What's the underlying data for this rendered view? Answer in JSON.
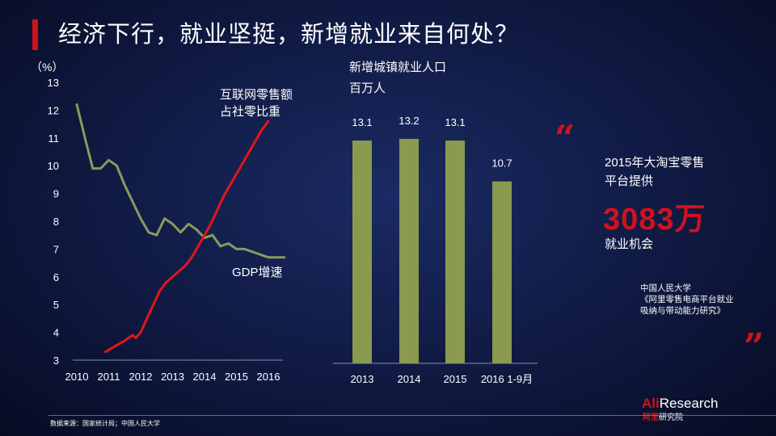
{
  "title": "经济下行，就业坚挺，新增就业来自何处？",
  "chart_data": [
    {
      "type": "line",
      "ylabel": "（%）",
      "ylim": [
        3,
        13
      ],
      "yticks": [
        "3",
        "4",
        "5",
        "6",
        "7",
        "8",
        "9",
        "10",
        "11",
        "12",
        "13"
      ],
      "xlim": [
        2010,
        2016.6
      ],
      "xticks": [
        "2010",
        "2011",
        "2012",
        "2013",
        "2014",
        "2015",
        "2016"
      ],
      "series": [
        {
          "name": "GDP增速",
          "color": "#8a9a5b",
          "x": [
            2010.0,
            2010.3,
            2010.5,
            2010.75,
            2011.0,
            2011.25,
            2011.5,
            2011.75,
            2012.0,
            2012.25,
            2012.5,
            2012.75,
            2013.0,
            2013.25,
            2013.5,
            2013.75,
            2014.0,
            2014.25,
            2014.5,
            2014.75,
            2015.0,
            2015.25,
            2015.5,
            2015.75,
            2016.0,
            2016.25,
            2016.5
          ],
          "y": [
            12.2,
            10.8,
            9.9,
            9.9,
            10.2,
            10.0,
            9.3,
            8.7,
            8.1,
            7.6,
            7.5,
            8.1,
            7.9,
            7.6,
            7.9,
            7.7,
            7.4,
            7.5,
            7.1,
            7.2,
            7.0,
            7.0,
            6.9,
            6.8,
            6.7,
            6.7,
            6.7
          ]
        },
        {
          "name": "互联网零售额\n占社零比重",
          "color": "#e0161c",
          "x": [
            2010.9,
            2011.2,
            2011.5,
            2011.75,
            2011.85,
            2012.0,
            2012.2,
            2012.4,
            2012.6,
            2012.8,
            2013.0,
            2013.2,
            2013.4,
            2013.6,
            2013.8,
            2014.0,
            2014.2,
            2014.4,
            2014.6,
            2014.8,
            2015.0,
            2015.2,
            2015.4,
            2015.6,
            2015.8,
            2016.0
          ],
          "y": [
            3.3,
            3.5,
            3.7,
            3.9,
            3.8,
            4.0,
            4.5,
            5.0,
            5.5,
            5.8,
            6.0,
            6.2,
            6.4,
            6.7,
            7.1,
            7.5,
            7.9,
            8.4,
            8.9,
            9.3,
            9.7,
            10.1,
            10.5,
            10.9,
            11.3,
            11.6
          ]
        }
      ]
    },
    {
      "type": "bar",
      "title": "新增城镇就业人口",
      "ylabel": "百万人",
      "categories": [
        "2013",
        "2014",
        "2015",
        "2016 1-9月"
      ],
      "values": [
        13.1,
        13.2,
        13.1,
        10.7
      ],
      "labels": [
        "13.1",
        "13.2",
        "13.1",
        "10.7"
      ],
      "ylim": [
        0,
        13.2
      ],
      "color": "#8a9a4f"
    }
  ],
  "callout": {
    "line1": "2015年大淘宝零售",
    "line2": "平台提供",
    "big_number": "3083万",
    "line3": "就业机会",
    "open_quote": "“",
    "close_quote": "”",
    "accent_color": "#d0121b"
  },
  "source_note": {
    "line1": "中国人民大学",
    "line2": "《阿里零售电商平台就业",
    "line3": "吸纳与带动能力研究》"
  },
  "footnote": "数据来源：国家统计局；中国人民大学",
  "brand": {
    "ali": "Ali",
    "research": "Research",
    "sub_red": "阿里",
    "sub_white": "研究院"
  }
}
